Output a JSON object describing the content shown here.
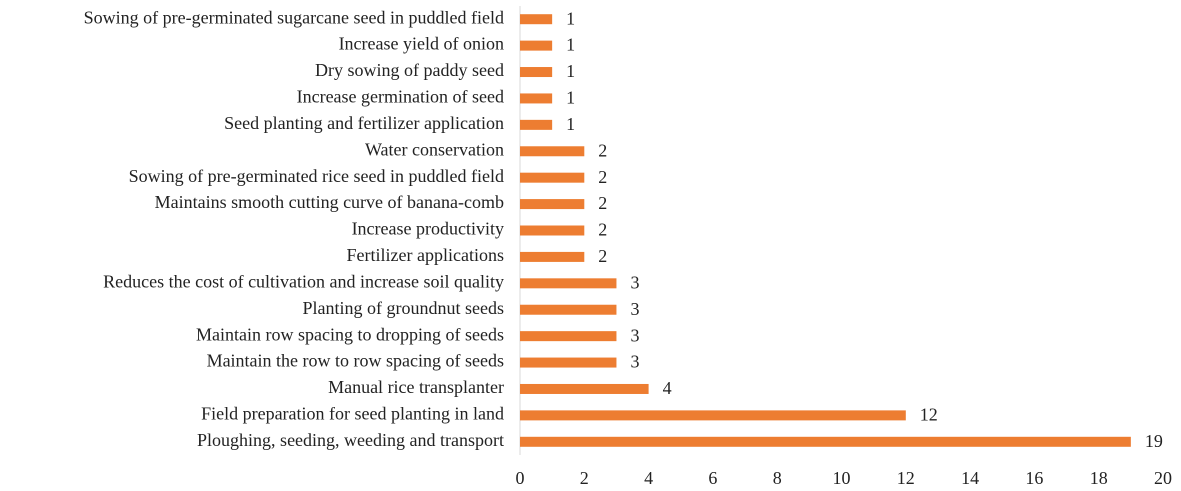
{
  "chart_data": {
    "type": "bar",
    "orientation": "horizontal",
    "categories": [
      "Sowing of pre-germinated sugarcane seed in puddled field",
      "Increase yield of onion",
      "Dry sowing of paddy seed",
      "Increase germination of seed",
      "Seed planting and fertilizer application",
      "Water conservation",
      "Sowing of pre-germinated rice seed in puddled field",
      "Maintains smooth cutting curve of banana-comb",
      "Increase productivity",
      "Fertilizer applications",
      "Reduces the cost of cultivation and increase soil quality",
      "Planting of groundnut seeds",
      "Maintain row spacing to dropping of seeds",
      "Maintain the row to row spacing of seeds",
      "Manual rice transplanter",
      "Field preparation for seed planting in land",
      "Ploughing, seeding, weeding and transport"
    ],
    "values": [
      1,
      1,
      1,
      1,
      1,
      2,
      2,
      2,
      2,
      2,
      3,
      3,
      3,
      3,
      4,
      12,
      19
    ],
    "color": "#ed7d31",
    "xlim": [
      0,
      20
    ],
    "xticks": [
      0,
      2,
      4,
      6,
      8,
      10,
      12,
      14,
      16,
      18,
      20
    ],
    "grid": false
  }
}
